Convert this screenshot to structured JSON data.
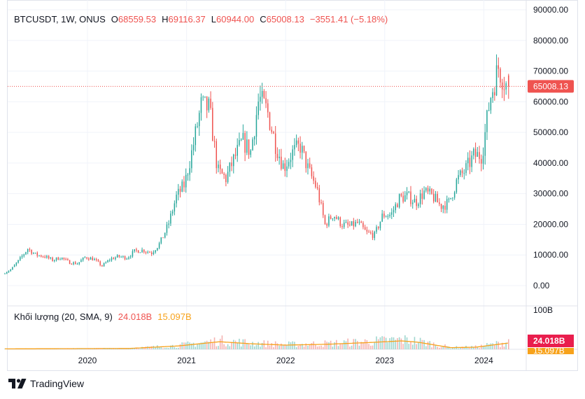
{
  "legend": {
    "symbol": "BTCUSDT, 1W, ONUS",
    "o_label": "O",
    "o_value": "68559.53",
    "h_label": "H",
    "h_value": "69116.37",
    "l_label": "L",
    "l_value": "60944.00",
    "c_label": "C",
    "c_value": "65008.13",
    "change": "−3551.41 (−5.18%)"
  },
  "volume_legend": {
    "title": "Khối lượng (20, SMA, 9)",
    "volume_value": "24.018B",
    "sma_value": "15.097B"
  },
  "price_scale": {
    "ticks": [
      "90000.00",
      "80000.00",
      "70000.00",
      "60000.00",
      "50000.00",
      "40000.00",
      "30000.00",
      "20000.00",
      "10000.00",
      "0.00"
    ],
    "last_price_label": "65008.13"
  },
  "volume_scale": {
    "top_tick": "100B",
    "last_volume_label": "24.018B",
    "sma_label": "15.097B"
  },
  "time_scale": {
    "ticks": [
      "2020",
      "2021",
      "2022",
      "2023",
      "2024"
    ]
  },
  "brand": {
    "name": "TradingView"
  },
  "colors": {
    "up": "#26a69a",
    "down": "#ef5350",
    "sma": "#f7a21b",
    "grid": "#f0f3fa",
    "text": "#131722"
  },
  "chart_data": {
    "type": "candlestick",
    "symbol": "BTCUSDT",
    "interval": "1W",
    "x_range": [
      "2019-03",
      "2024-04"
    ],
    "ylim": [
      0,
      90000
    ],
    "volume_ylim_billions": [
      0,
      100
    ],
    "grid": true,
    "last": {
      "open": 68559.53,
      "high": 69116.37,
      "low": 60944.0,
      "close": 65008.13,
      "volume_b": 24.018,
      "volume_sma_b": 15.097
    },
    "close_path": [
      [
        "2019-03",
        3900
      ],
      [
        "2019-04",
        5300
      ],
      [
        "2019-05",
        8500
      ],
      [
        "2019-06",
        12000
      ],
      [
        "2019-07",
        10000
      ],
      [
        "2019-08",
        9600
      ],
      [
        "2019-09",
        8300
      ],
      [
        "2019-10",
        9200
      ],
      [
        "2019-11",
        7600
      ],
      [
        "2019-12",
        7200
      ],
      [
        "2020-01",
        9300
      ],
      [
        "2020-02",
        8600
      ],
      [
        "2020-03",
        6400
      ],
      [
        "2020-04",
        8700
      ],
      [
        "2020-05",
        9500
      ],
      [
        "2020-06",
        9100
      ],
      [
        "2020-07",
        11300
      ],
      [
        "2020-08",
        11600
      ],
      [
        "2020-09",
        10700
      ],
      [
        "2020-10",
        13800
      ],
      [
        "2020-11",
        19700
      ],
      [
        "2020-12",
        29000
      ],
      [
        "2021-01",
        33100
      ],
      [
        "2021-02",
        45200
      ],
      [
        "2021-03",
        58800
      ],
      [
        "2021-04",
        57700
      ],
      [
        "2021-05",
        37300
      ],
      [
        "2021-06",
        35000
      ],
      [
        "2021-07",
        41500
      ],
      [
        "2021-08",
        47100
      ],
      [
        "2021-09",
        43800
      ],
      [
        "2021-10",
        61300
      ],
      [
        "2021-11",
        57000
      ],
      [
        "2021-12",
        46200
      ],
      [
        "2022-01",
        38500
      ],
      [
        "2022-02",
        43200
      ],
      [
        "2022-03",
        45500
      ],
      [
        "2022-04",
        37600
      ],
      [
        "2022-05",
        31800
      ],
      [
        "2022-06",
        19900
      ],
      [
        "2022-07",
        23300
      ],
      [
        "2022-08",
        20000
      ],
      [
        "2022-09",
        19400
      ],
      [
        "2022-10",
        20500
      ],
      [
        "2022-11",
        17200
      ],
      [
        "2022-12",
        16500
      ],
      [
        "2023-01",
        23100
      ],
      [
        "2023-02",
        23100
      ],
      [
        "2023-03",
        28500
      ],
      [
        "2023-04",
        29200
      ],
      [
        "2023-05",
        27200
      ],
      [
        "2023-06",
        30500
      ],
      [
        "2023-07",
        29200
      ],
      [
        "2023-08",
        26000
      ],
      [
        "2023-09",
        27000
      ],
      [
        "2023-10",
        34500
      ],
      [
        "2023-11",
        37700
      ],
      [
        "2023-12",
        42300
      ],
      [
        "2024-01",
        42600
      ],
      [
        "2024-02",
        61200
      ],
      [
        "2024-03",
        71300
      ],
      [
        "2024-04",
        65008
      ]
    ],
    "volume_sma_path_b": [
      [
        "2019-03",
        1
      ],
      [
        "2020-06",
        2
      ],
      [
        "2020-12",
        8
      ],
      [
        "2021-03",
        14
      ],
      [
        "2021-05",
        18
      ],
      [
        "2021-09",
        13
      ],
      [
        "2022-01",
        10
      ],
      [
        "2022-06",
        12
      ],
      [
        "2022-11",
        16
      ],
      [
        "2023-03",
        20
      ],
      [
        "2023-05",
        17
      ],
      [
        "2023-09",
        4
      ],
      [
        "2023-12",
        5
      ],
      [
        "2024-04",
        15
      ]
    ]
  }
}
